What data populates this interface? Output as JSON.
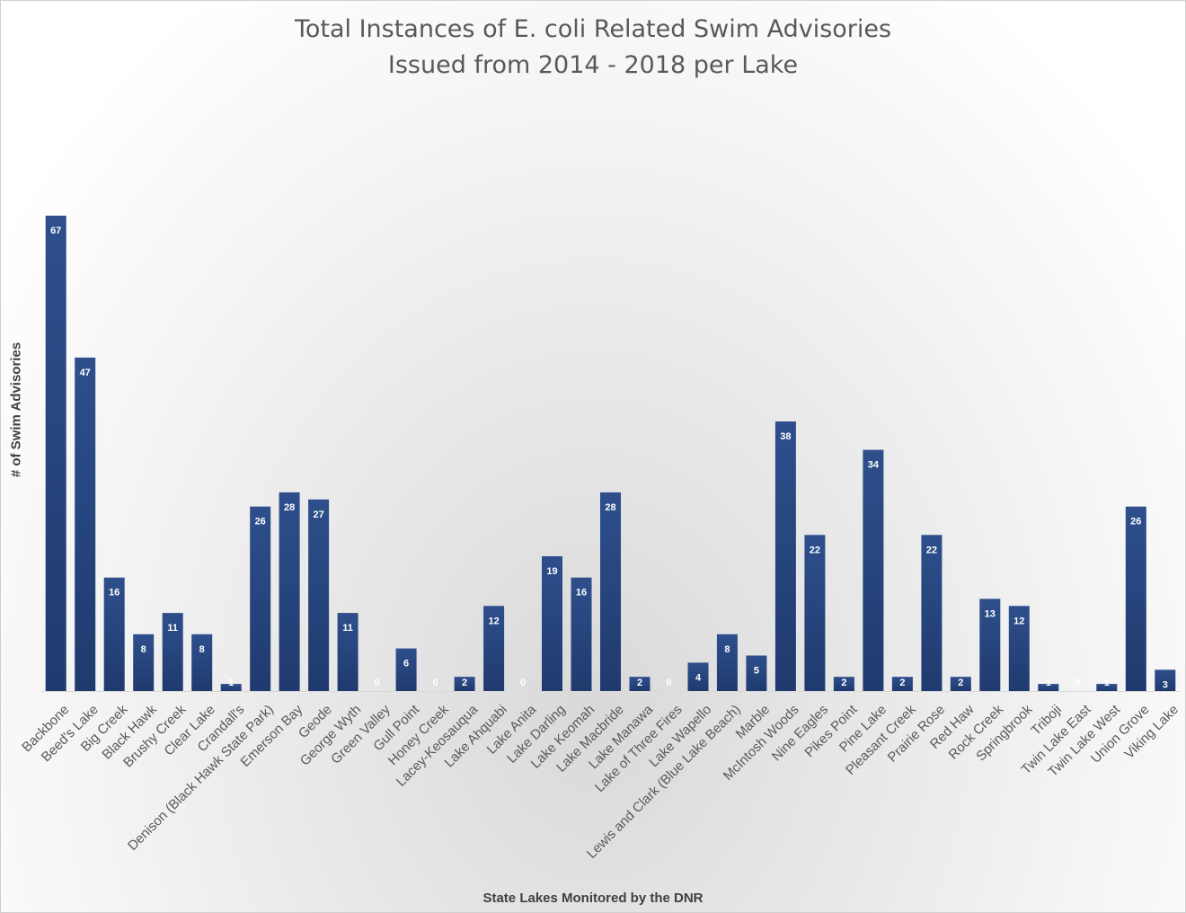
{
  "chart_data": {
    "type": "bar",
    "title": [
      "Total Instances of E. coli Related Swim Advisories",
      "Issued from 2014 - 2018 per Lake"
    ],
    "xlabel": "State Lakes Monitored by the DNR",
    "ylabel": "# of Swim Advisories",
    "ylim": [
      0,
      67
    ],
    "grid": false,
    "legend": "none",
    "colors": {
      "bar": "#1f3a6e",
      "bar_light": "#2e4f8c",
      "value_text": "#ffffff",
      "axis": "#d9d9d9"
    },
    "categories": [
      "Backbone",
      "Beed's Lake",
      "Big Creek",
      "Black Hawk",
      "Brushy Creek",
      "Clear Lake",
      "Crandall's",
      "Denison (Black Hawk State Park)",
      "Emerson Bay",
      "Geode",
      "George Wyth",
      "Green Valley",
      "Gull Point",
      "Honey Creek",
      "Lacey-Keosauqua",
      "Lake Ahquabi",
      "Lake Anita",
      "Lake Darling",
      "Lake Keomah",
      "Lake Macbride",
      "Lake Manawa",
      "Lake of Three Fires",
      "Lake Wapello",
      "Lewis and Clark (Blue Lake Beach)",
      "Marble",
      "McIntosh Woods",
      "Nine Eagles",
      "Pikes Point",
      "Pine Lake",
      "Pleasant Creek",
      "Prairie Rose",
      "Red Haw",
      "Rock Creek",
      "Springbrook",
      "Triboji",
      "Twin Lake East",
      "Twin Lake West",
      "Union Grove",
      "Viking Lake"
    ],
    "values": [
      67,
      47,
      16,
      8,
      11,
      8,
      1,
      26,
      28,
      27,
      11,
      0,
      6,
      0,
      2,
      12,
      0,
      19,
      16,
      28,
      2,
      0,
      4,
      8,
      5,
      38,
      22,
      2,
      34,
      2,
      22,
      2,
      13,
      12,
      1,
      0,
      1,
      26,
      3
    ]
  }
}
